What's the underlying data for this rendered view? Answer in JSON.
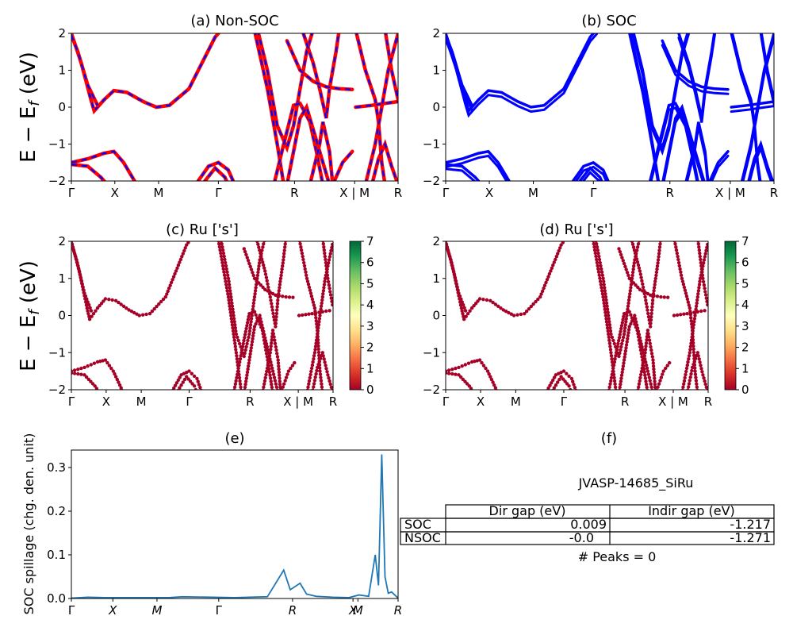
{
  "chart_data": [
    {
      "id": "a",
      "type": "line",
      "title": "(a) Non-SOC",
      "ylabel": "E − E_f (eV)",
      "ylim": [
        -2,
        2
      ],
      "yticks": [
        "2",
        "1",
        "0",
        "−1",
        "−2"
      ],
      "kpath": [
        "Γ",
        "X",
        "M",
        "Γ",
        "R",
        "X | M",
        "R"
      ],
      "series": [
        {
          "color": "#ff0000",
          "style": "solid"
        },
        {
          "color": "#0000ff",
          "style": "dashed"
        }
      ]
    },
    {
      "id": "b",
      "type": "line",
      "title": "(b) SOC",
      "ylim": [
        -2,
        2
      ],
      "yticks": [
        "2",
        "1",
        "0",
        "−1",
        "−2"
      ],
      "kpath": [
        "Γ",
        "X",
        "M",
        "Γ",
        "R",
        "X | M",
        "R"
      ],
      "series": [
        {
          "color": "#0000ff",
          "style": "solid"
        }
      ]
    },
    {
      "id": "c",
      "type": "scatter",
      "title": "(c)  Ru ['s']",
      "ylabel": "E − E_f (eV)",
      "ylim": [
        -2,
        2
      ],
      "yticks": [
        "2",
        "1",
        "0",
        "−1",
        "−2"
      ],
      "kpath": [
        "Γ",
        "X",
        "M",
        "Γ",
        "R",
        "X | M",
        "R"
      ],
      "colorbar": {
        "min": 0,
        "max": 7,
        "ticks": [
          "7",
          "6",
          "5",
          "4",
          "3",
          "2",
          "1",
          "0"
        ],
        "colormap": "RdYlGn"
      }
    },
    {
      "id": "d",
      "type": "scatter",
      "title": "(d) Ru ['s']",
      "ylim": [
        -2,
        2
      ],
      "yticks": [
        "2",
        "1",
        "0",
        "−1",
        "−2"
      ],
      "kpath": [
        "Γ",
        "X",
        "M",
        "Γ",
        "R",
        "X | M",
        "R"
      ],
      "colorbar": {
        "min": 0,
        "max": 7,
        "ticks": [
          "7",
          "6",
          "5",
          "4",
          "3",
          "2",
          "1",
          "0"
        ],
        "colormap": "RdYlGn"
      }
    },
    {
      "id": "e",
      "type": "line",
      "title": "(e)",
      "ylabel": "SOC spillage (chg. den. unit)",
      "ylim": [
        0,
        0.34
      ],
      "yticks": [
        "0.3",
        "0.2",
        "0.1",
        "0.0"
      ],
      "kpath": [
        "Γ",
        "X",
        "M",
        "Γ",
        "R",
        "X",
        "M",
        "R"
      ],
      "x": [
        0,
        0.05,
        0.1,
        0.3,
        0.34,
        0.5,
        0.6,
        0.65,
        0.67,
        0.7,
        0.72,
        0.75,
        0.8,
        0.85,
        0.88,
        0.91,
        0.93,
        0.94,
        0.95,
        0.96,
        0.97,
        0.98,
        1.0
      ],
      "y": [
        0.001,
        0.003,
        0.002,
        0.002,
        0.004,
        0.002,
        0.004,
        0.065,
        0.02,
        0.035,
        0.01,
        0.005,
        0.003,
        0.002,
        0.008,
        0.005,
        0.1,
        0.03,
        0.33,
        0.05,
        0.012,
        0.015,
        0.001
      ]
    }
  ],
  "panel_f": {
    "title": "(f)",
    "material": "JVASP-14685_SiRu",
    "headers": [
      "",
      "Dir gap (eV)",
      "Indir gap (eV)"
    ],
    "rows": [
      {
        "label": "SOC",
        "dir": "0.009",
        "indir": "-1.217"
      },
      {
        "label": "NSOC",
        "dir": "-0.0",
        "indir": "-1.271"
      }
    ],
    "peaks": "# Peaks = 0"
  }
}
